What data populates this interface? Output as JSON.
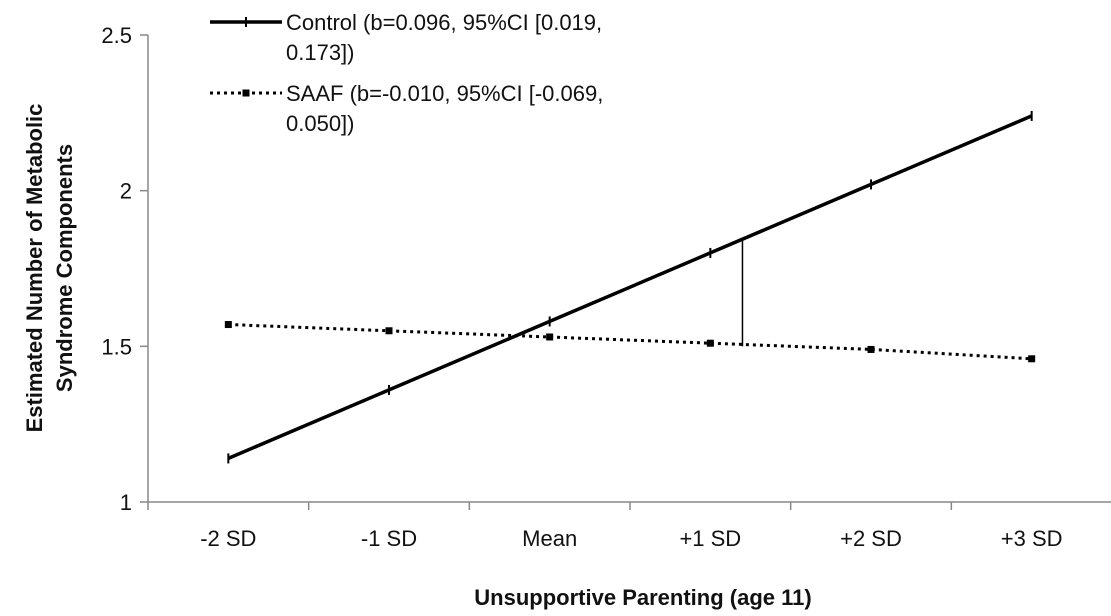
{
  "chart_data": {
    "type": "line",
    "title": "",
    "xlabel": "Unsupportive Parenting (age 11)",
    "ylabel_lines": [
      "Estimated Number of  Metabolic",
      "Syndrome Components"
    ],
    "categories": [
      "-2 SD",
      "-1 SD",
      "Mean",
      "+1 SD",
      "+2 SD",
      "+3 SD"
    ],
    "ylim": [
      1,
      2.5
    ],
    "yticks": [
      {
        "value": 1,
        "label": "1"
      },
      {
        "value": 1.5,
        "label": "1.5"
      },
      {
        "value": 2,
        "label": "2"
      },
      {
        "value": 2.5,
        "label": "2.5"
      }
    ],
    "grid": false,
    "legend_position": "top-left",
    "series": [
      {
        "name": "Control",
        "legend_lines": [
          "Control (b=0.096, 95%CI [0.019,",
          "0.173])"
        ],
        "style": "solid",
        "values": [
          1.14,
          1.36,
          1.58,
          1.8,
          2.02,
          2.24
        ]
      },
      {
        "name": "SAAF",
        "legend_lines": [
          "SAAF (b=-0.010, 95%CI [-0.069,",
          "0.050])"
        ],
        "style": "dotted",
        "values": [
          1.57,
          1.55,
          1.53,
          1.51,
          1.49,
          1.46
        ]
      }
    ],
    "annotation": {
      "type": "vertical-segment",
      "x_category_position": 3.2,
      "y_from": 1.5,
      "y_to": 1.84
    }
  }
}
